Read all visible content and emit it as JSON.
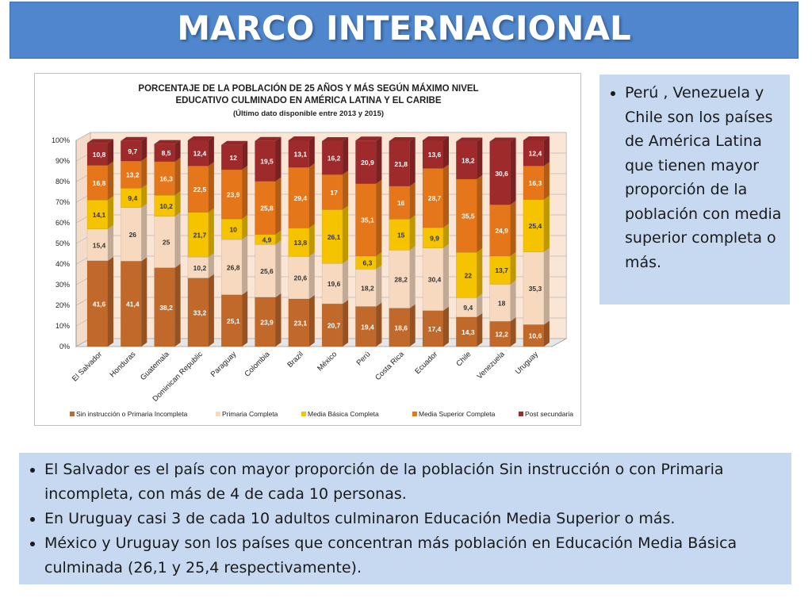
{
  "header": {
    "title": "MARCO INTERNACIONAL"
  },
  "side_notes": {
    "items": [
      "Perú , Venezuela y Chile son los países de América Latina que tienen mayor proporción de la población con media superior completa o más."
    ]
  },
  "bottom_notes": {
    "items": [
      "El Salvador es el país con mayor proporción de la población Sin instrucción o con Primaria incompleta, con más de 4 de cada 10 personas.",
      "En Uruguay casi 3 de cada 10 adultos culminaron Educación Media Superior o más.",
      "México y Uruguay son los países que concentran más población en Educación Media Básica culminada (26,1 y 25,4 respectivamente)."
    ]
  },
  "colors": {
    "sin_instruccion": "#c0692a",
    "primaria": "#f6d9bf",
    "media_basica": "#f5c300",
    "media_superior": "#e6761a",
    "post_secundaria": "#9e2a2b",
    "wall": "#fbe6d6"
  },
  "chart_data": {
    "type": "bar",
    "stacked": true,
    "title_lines": [
      "PORCENTAJE DE LA POBLACIÓN DE 25 AÑOS Y MÁS SEGÚN MÁXIMO NIVEL",
      "EDUCATIVO CULMINADO EN AMÉRICA LATINA Y EL CARIBE"
    ],
    "subtitle": "(Último dato disponible entre 2013 y 2015)",
    "categories": [
      "El Salvador",
      "Honduras",
      "Guatemala",
      "Dominican Republic",
      "Paraguay",
      "Colombia",
      "Brazil",
      "México",
      "Perú",
      "Costa Rica",
      "Ecuador",
      "Chile",
      "Venezuela",
      "Uruguay"
    ],
    "series": [
      {
        "name": "Sin instrucción o Primaria Incompleta",
        "color": "#c0692a",
        "label_color": "#ffffff",
        "values": [
          41.6,
          41.4,
          38.2,
          33.2,
          25.1,
          23.9,
          23.1,
          20.7,
          19.4,
          18.6,
          17.4,
          14.3,
          12.2,
          10.6
        ]
      },
      {
        "name": "Primaria Completa",
        "color": "#f6d9bf",
        "label_color": "#333333",
        "values": [
          15.4,
          26,
          25,
          10.2,
          26.8,
          25.6,
          20.6,
          19.6,
          18.2,
          28.2,
          30.4,
          9.4,
          18,
          35.3
        ]
      },
      {
        "name": "Media Básica Completa",
        "color": "#f5c300",
        "label_color": "#333333",
        "values": [
          14.1,
          9.4,
          10.2,
          21.7,
          10,
          4.9,
          13.8,
          26.1,
          6.3,
          15,
          9.9,
          22,
          13.7,
          25.4
        ]
      },
      {
        "name": "Media Superior  Completa",
        "color": "#e6761a",
        "label_color": "#ffffff",
        "values": [
          16.8,
          13.2,
          16.3,
          22.5,
          23.9,
          25.8,
          29.4,
          17,
          35.1,
          16,
          28.7,
          35.5,
          24.9,
          16.3
        ]
      },
      {
        "name": "Post secundaria",
        "color": "#9e2a2b",
        "label_color": "#ffffff",
        "values": [
          10.8,
          9.7,
          8.5,
          12.4,
          12,
          19.5,
          13.1,
          16.2,
          20.9,
          21.8,
          13.6,
          18.2,
          30.6,
          12.4
        ]
      }
    ],
    "y_ticks": [
      "0%",
      "10%",
      "20%",
      "30%",
      "40%",
      "50%",
      "60%",
      "70%",
      "80%",
      "90%",
      "100%"
    ],
    "ylim": [
      0,
      100
    ],
    "decimal_separator": ",",
    "legend_position": "bottom",
    "grid": true
  }
}
